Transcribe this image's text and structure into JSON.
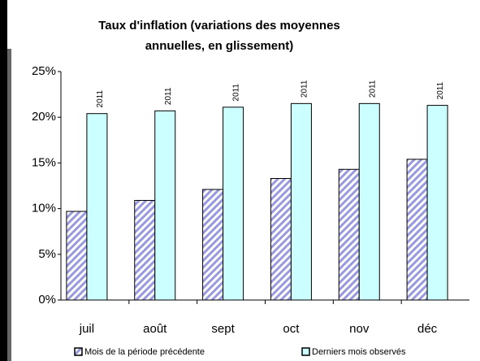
{
  "chart_data": {
    "type": "bar",
    "title": [
      "Taux d'inflation (variations des moyennes",
      "annuelles, en glissement)"
    ],
    "categories": [
      "juil",
      "août",
      "sept",
      "oct",
      "nov",
      "déc"
    ],
    "series": [
      {
        "name": "Mois de la période précédente",
        "color": "#9999dd",
        "hatch": true,
        "values": [
          9.7,
          10.9,
          12.1,
          13.3,
          14.3,
          15.4
        ]
      },
      {
        "name": "Derniers mois observés",
        "color": "#ccffff",
        "hatch": false,
        "values": [
          20.4,
          20.7,
          21.1,
          21.5,
          21.5,
          21.3
        ],
        "annotations": [
          "2011",
          "2011",
          "2011",
          "2011",
          "2011",
          "2011"
        ]
      }
    ],
    "ylim": [
      0,
      25
    ],
    "yticks": [
      {
        "value": 0,
        "label": "0%"
      },
      {
        "value": 5,
        "label": "5%"
      },
      {
        "value": 10,
        "label": "10%"
      },
      {
        "value": 15,
        "label": "15%"
      },
      {
        "value": 20,
        "label": "20%"
      },
      {
        "value": 25,
        "label": "25%"
      }
    ],
    "grid": false,
    "legend": "bottom"
  }
}
